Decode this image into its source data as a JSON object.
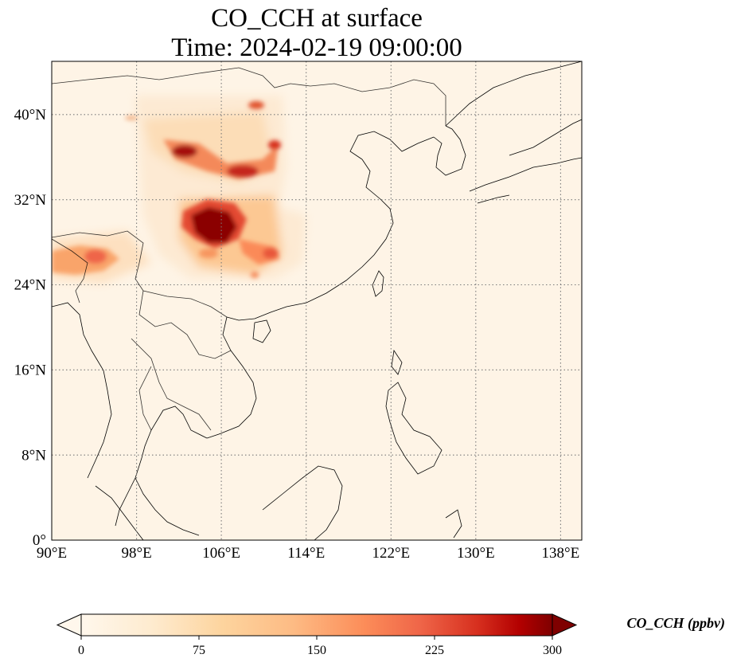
{
  "title": {
    "line1": "CO_CCH at surface",
    "line2": "Time: 2024-02-19 09:00:00"
  },
  "map": {
    "variable": "CO_CCH",
    "level": "surface",
    "lon_range": [
      90,
      140
    ],
    "lat_range": [
      0,
      45
    ],
    "grid_lines": true,
    "lon_ticks": [
      "90°E",
      "98°E",
      "106°E",
      "114°E",
      "122°E",
      "130°E",
      "138°E"
    ],
    "lat_ticks": [
      "0°",
      "8°N",
      "16°N",
      "24°N",
      "32°N",
      "40°N"
    ],
    "colormap": "OrRd",
    "colors": {
      "background_low": "#fff7ec",
      "low_mid": "#fdd49e",
      "mid": "#fc8d59",
      "high": "#d7301f",
      "max": "#7f0000",
      "coastline": "#000000",
      "gridline": "#7a7a7a"
    }
  },
  "colorbar": {
    "label": "CO_CCH (ppbv)",
    "min": 0,
    "max": 300,
    "extend": "both",
    "ticks": [
      "0",
      "75",
      "150",
      "225",
      "300"
    ]
  }
}
